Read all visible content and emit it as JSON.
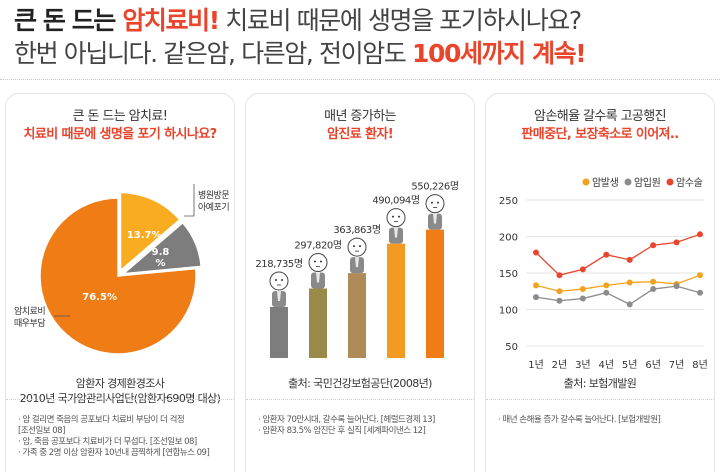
{
  "headline": {
    "line1": {
      "bold": "큰 돈 드는 ",
      "red": "암치료비!",
      "rest": " 치료비 때문에 생명을 포기하시나요?"
    },
    "line2": {
      "plain": "한번 아닙니다. 같은암, 다른암, 전이암도 ",
      "red": "100세까지 계속!"
    }
  },
  "colors": {
    "accent": "#e8452c",
    "orange": "#f07c15",
    "gray": "#7d7d7d",
    "tan": "#b08b5a",
    "olive": "#9a8a4a"
  },
  "card1": {
    "title_line1": "큰 돈 드는 암치료!",
    "title_line2": "치료비 때문에 생명을 포기 하시나요?",
    "source_line1": "암환자 경제환경조사",
    "source_line2": "2010년 국가암관리사업단(암환자690명 대상)",
    "notes": [
      "· 암 걸리면 죽음의 공포보다 치료비 부담이 더 걱정",
      "  [조선일보 08]",
      "· 암, 죽음 공포보다 치료비가 더 무섭다. [조선일보 08]",
      "· 가족 중 2명 이상 암환자 10년내 끔찍하게 [연합뉴스 09]"
    ],
    "chart_data": {
      "type": "pie",
      "slices": [
        {
          "label_line1": "암치료비",
          "label_line2": "때우부담",
          "value": 76.5,
          "value_label": "76.5%"
        },
        {
          "label_line1": "병원방문",
          "label_line2": "아예포기",
          "value": 13.7,
          "value_label": "13.7%"
        },
        {
          "label_line1": "",
          "label_line2": "",
          "value": 9.8,
          "value_label": "9.8%"
        }
      ]
    }
  },
  "card2": {
    "title_line1": "매년 증가하는",
    "title_line2": "암진료 환자!",
    "source": "출처: 국민건강보험공단(2008년)",
    "notes": [
      "· 암환자 70만시대, 갈수록 늘어난다. [헤럴드경제 13]",
      "· 암환자 83.5% 암진단 후 실직 [세계파이낸스 12]"
    ],
    "chart_data": {
      "type": "bar",
      "categories": [
        "",
        "",
        "",
        "",
        ""
      ],
      "values": [
        218735,
        297820,
        363863,
        490094,
        550226
      ],
      "value_labels": [
        "218,735명",
        "297,820명",
        "363,863명",
        "490,094명",
        "550,226명"
      ],
      "bar_colors": [
        "#7d7d7d",
        "#9a8a4a",
        "#b08b5a",
        "#f39a22",
        "#f07c15"
      ]
    }
  },
  "card3": {
    "title_line1": "암손해율 갈수록 고공행진",
    "title_line2": "판매중단, 보장축소로 이어져..",
    "source": "출처: 보험개발원",
    "notes": [
      "· 매년 손해율 증가 갈수록 늘어난다. [보험개발원]"
    ],
    "chart_data": {
      "type": "line",
      "x": [
        "1년",
        "2년",
        "3년",
        "4년",
        "5년",
        "6년",
        "7년",
        "8년"
      ],
      "ylim": [
        50,
        250
      ],
      "yticks": [
        50,
        100,
        150,
        200,
        250
      ],
      "series": [
        {
          "name": "암발생",
          "color": "#f3a21d",
          "values": [
            133,
            125,
            128,
            133,
            137,
            138,
            135,
            147
          ]
        },
        {
          "name": "암입원",
          "color": "#8c8c8c",
          "values": [
            117,
            112,
            115,
            123,
            107,
            128,
            132,
            123
          ]
        },
        {
          "name": "암수술",
          "color": "#e8452c",
          "values": [
            178,
            147,
            155,
            175,
            168,
            188,
            192,
            203
          ]
        }
      ]
    }
  }
}
